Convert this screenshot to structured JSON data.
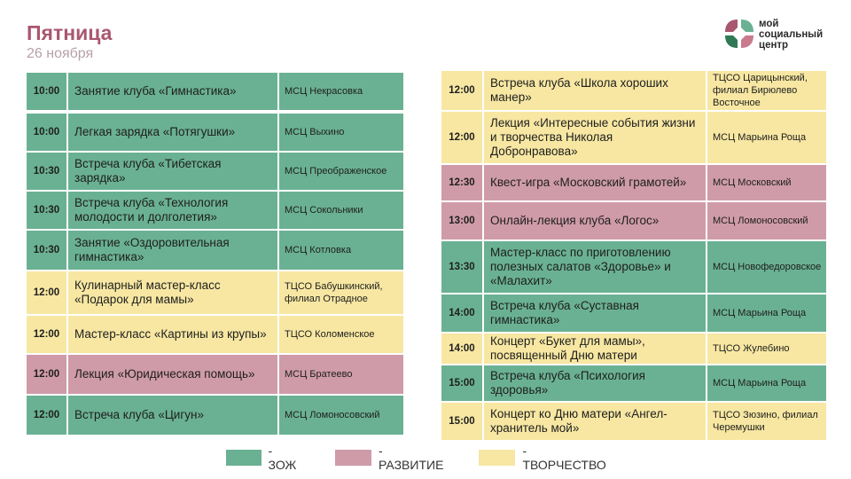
{
  "header": {
    "title": "Пятница",
    "date": "26 ноября"
  },
  "logo": {
    "line1": "мой",
    "line2": "социальный",
    "line3": "центр",
    "colors": [
      "#a9576f",
      "#6ab193",
      "#2f7a55",
      "#c97b8e"
    ]
  },
  "colors": {
    "zoj": "#6ab193",
    "razv": "#cf9ba9",
    "tvor": "#f7e7a2",
    "title": "#a9576f"
  },
  "left_schedule": [
    {
      "time": "10:00",
      "event": "Занятие клуба «Гимнастика»",
      "place": "МСЦ Некрасовка",
      "category": "zoj"
    },
    {
      "time": "10:00",
      "event": " Легкая зарядка «Потягушки»",
      "place": "МСЦ Выхино",
      "category": "zoj"
    },
    {
      "time": "10:30",
      "event": "Встреча клуба «Тибетская зарядка»",
      "place": "МСЦ Преображенское",
      "category": "zoj"
    },
    {
      "time": "10:30",
      "event": "Встреча клуба «Технология молодости и долголетия»",
      "place": "МСЦ Сокольники",
      "category": "zoj"
    },
    {
      "time": "10:30",
      "event": "Занятие «Оздоровительная гимнастика»",
      "place": "МСЦ Котловка",
      "category": "zoj"
    },
    {
      "time": "12:00",
      "event": "Кулинарный мастер-класс «Подарок для мамы»",
      "place": "ТЦСО Бабушкинский, филиал Отрадное",
      "category": "tvor"
    },
    {
      "time": "12:00",
      "event": "Мастер-класс «Картины из крупы»",
      "place": "ТЦСО Коломенское",
      "category": "tvor"
    },
    {
      "time": "12:00",
      "event": "Лекция «Юридическая помощь»",
      "place": "МСЦ Братеево",
      "category": "razv"
    },
    {
      "time": "12:00",
      "event": "Встреча клуба «Цигун»",
      "place": "МСЦ Ломоносовский",
      "category": "zoj"
    }
  ],
  "right_schedule": [
    {
      "time": "12:00",
      "event": "Встреча клуба «Школа хороших манер»",
      "place": "ТЦСО Царицынский, филиал Бирюлево Восточное",
      "category": "tvor"
    },
    {
      "time": "12:00",
      "event": "Лекция «Интересные события жизни и творчества Николая Добронравова»",
      "place": "МСЦ Марьина Роща",
      "category": "tvor"
    },
    {
      "time": "12:30",
      "event": "Квест-игра «Московский грамотей»",
      "place": "МСЦ Московский",
      "category": "razv"
    },
    {
      "time": "13:00",
      "event": "Онлайн-лекция клуба «Логос»",
      "place": "МСЦ Ломоносовский",
      "category": "razv"
    },
    {
      "time": "13:30",
      "event": "Мастер-класс по приготовлению полезных салатов «Здоровье» и «Малахит»",
      "place": "МСЦ Новофедоровское",
      "category": "zoj"
    },
    {
      "time": "14:00",
      "event": "Встреча клуба «Суставная гимнастика»",
      "place": "МСЦ Марьина Роща",
      "category": "zoj"
    },
    {
      "time": "14:00",
      "event": "Концерт «Букет для мамы», посвященный Дню матери",
      "place": "ТЦСО Жулебино",
      "category": "tvor"
    },
    {
      "time": "15:00",
      "event": "Встреча клуба «Психология здоровья»",
      "place": "МСЦ Марьина Роща",
      "category": "zoj"
    },
    {
      "time": "15:00",
      "event": "Концерт ко Дню матери «Ангел-хранитель мой»",
      "place": "ТЦСО Зюзино, филиал Черемушки",
      "category": "tvor"
    }
  ],
  "legend": [
    {
      "category": "zoj",
      "label": "- ЗОЖ"
    },
    {
      "category": "razv",
      "label": "- РАЗВИТИЕ"
    },
    {
      "category": "tvor",
      "label": "- ТВОРЧЕСТВО"
    }
  ]
}
